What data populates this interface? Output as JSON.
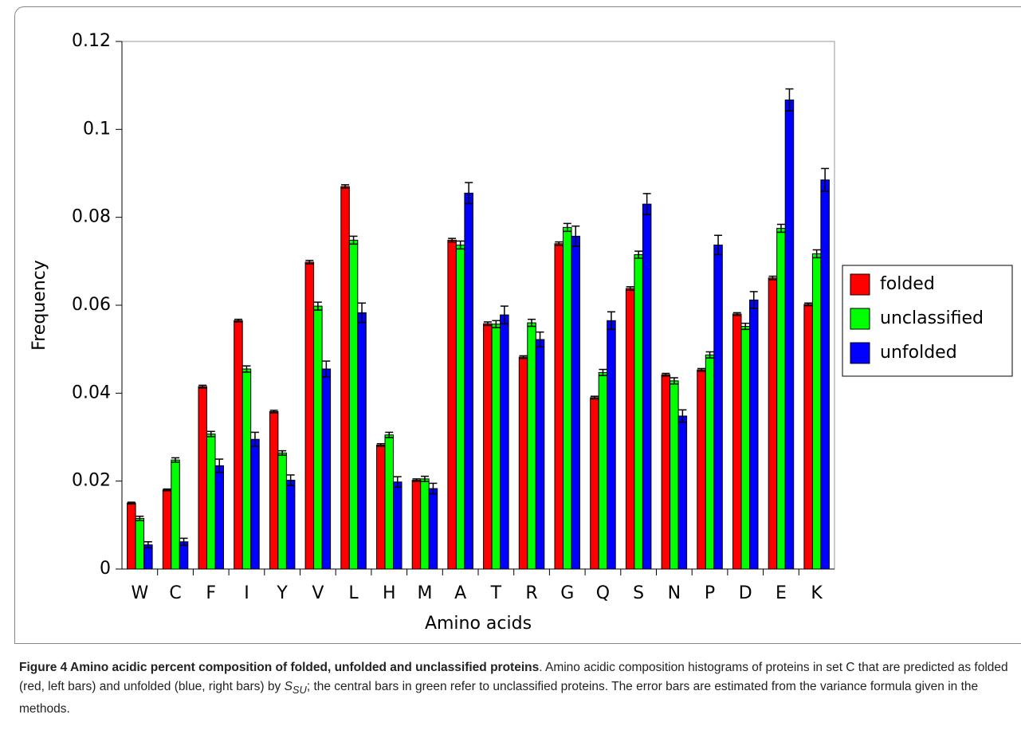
{
  "chart_data": {
    "type": "bar",
    "x_label": "Amino acids",
    "y_label": "Frequency",
    "categories": [
      "W",
      "C",
      "F",
      "I",
      "Y",
      "V",
      "L",
      "H",
      "M",
      "A",
      "T",
      "R",
      "G",
      "Q",
      "S",
      "N",
      "P",
      "D",
      "E",
      "K"
    ],
    "series": [
      {
        "name": "folded",
        "color": "#ff0000",
        "values": [
          0.015,
          0.018,
          0.0415,
          0.0565,
          0.0358,
          0.0698,
          0.087,
          0.0282,
          0.0202,
          0.0748,
          0.0558,
          0.0482,
          0.074,
          0.039,
          0.0638,
          0.0442,
          0.0453,
          0.058,
          0.0662,
          0.0602
        ],
        "errors": [
          0.0002,
          0.0002,
          0.0003,
          0.0003,
          0.0003,
          0.0004,
          0.0004,
          0.0003,
          0.0003,
          0.0004,
          0.0004,
          0.0003,
          0.0004,
          0.0003,
          0.0004,
          0.0003,
          0.0003,
          0.0003,
          0.0004,
          0.0003
        ]
      },
      {
        "name": "unclassified",
        "color": "#00ff00",
        "values": [
          0.0115,
          0.0248,
          0.0307,
          0.0455,
          0.0264,
          0.0598,
          0.0748,
          0.0305,
          0.0205,
          0.0737,
          0.0557,
          0.056,
          0.0777,
          0.0447,
          0.0715,
          0.0428,
          0.0487,
          0.0552,
          0.0775,
          0.0717
        ],
        "errors": [
          0.0005,
          0.0005,
          0.0006,
          0.0007,
          0.0005,
          0.0009,
          0.0009,
          0.0006,
          0.0006,
          0.0009,
          0.0008,
          0.0008,
          0.0009,
          0.0007,
          0.0008,
          0.0007,
          0.0007,
          0.0007,
          0.0009,
          0.0009
        ]
      },
      {
        "name": "unfolded",
        "color": "#0000ff",
        "values": [
          0.0055,
          0.0062,
          0.0235,
          0.0295,
          0.0202,
          0.0455,
          0.0583,
          0.0198,
          0.0183,
          0.0855,
          0.0578,
          0.0522,
          0.0757,
          0.0565,
          0.083,
          0.0348,
          0.0737,
          0.0612,
          0.1067,
          0.0885
        ],
        "errors": [
          0.0007,
          0.0008,
          0.0015,
          0.0016,
          0.0012,
          0.0018,
          0.0022,
          0.0012,
          0.0012,
          0.0024,
          0.002,
          0.0017,
          0.0023,
          0.002,
          0.0024,
          0.0014,
          0.0022,
          0.0019,
          0.0025,
          0.0026
        ]
      }
    ],
    "ylim": [
      0,
      0.12
    ],
    "yticks": [
      0,
      0.02,
      0.04,
      0.06,
      0.08,
      0.1,
      0.12
    ],
    "legend": "right"
  },
  "caption": {
    "title": "Figure 4 Amino acidic percent composition of folded, unfolded and unclassified proteins",
    "text_before": ". Amino acidic composition histograms of proteins in set C that are predicted as folded (red, left bars) and unfolded (blue, right bars) by ",
    "symbol": "S",
    "subscript": "SU",
    "text_after": "; the central bars in green refer to unclassified proteins. The error bars are estimated from the variance formula given in the methods."
  }
}
